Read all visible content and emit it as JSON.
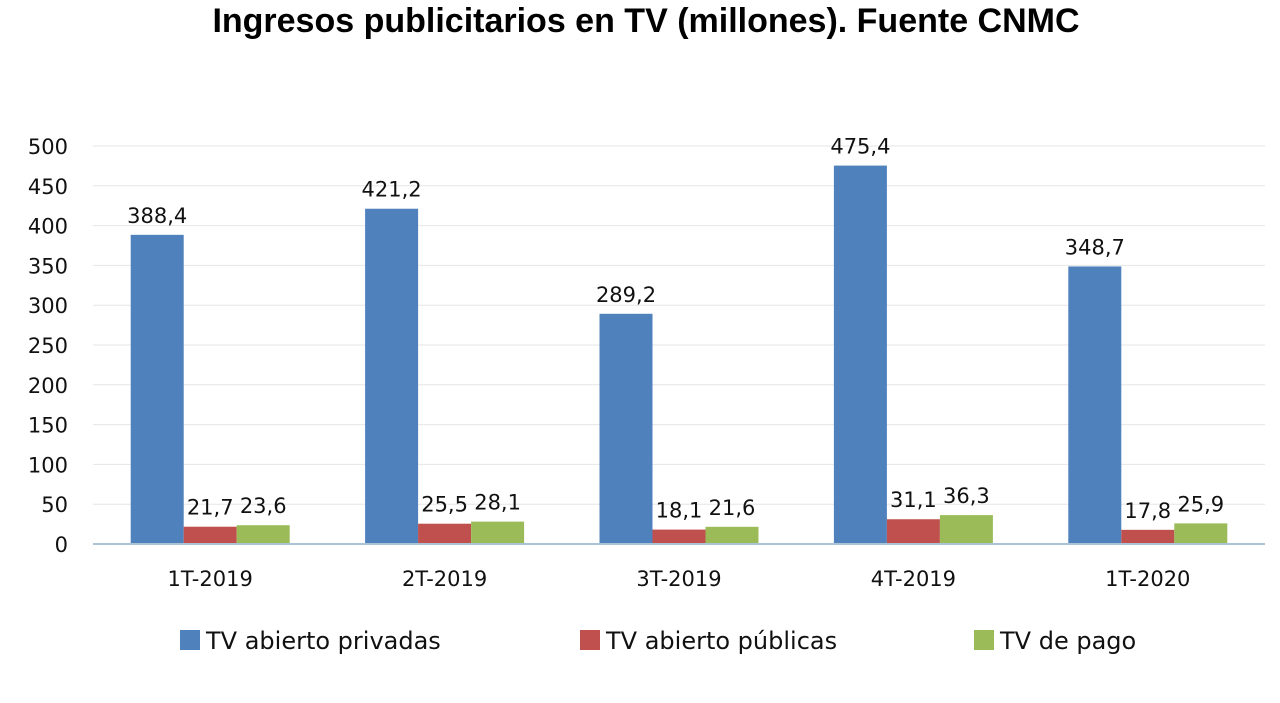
{
  "chart_data": {
    "type": "bar",
    "title": "Ingresos publicitarios en TV (millones). Fuente CNMC",
    "xlabel": "",
    "ylabel": "",
    "categories": [
      "1T-2019",
      "2T-2019",
      "3T-2019",
      "4T-2019",
      "1T-2020"
    ],
    "series": [
      {
        "name": "TV abierto privadas",
        "color": "#4f81bd",
        "values": [
          388.4,
          421.2,
          289.2,
          475.4,
          348.7
        ],
        "labels": [
          "388,4",
          "421,2",
          "289,2",
          "475,4",
          "348,7"
        ]
      },
      {
        "name": "TV abierto públicas",
        "color": "#c0504d",
        "values": [
          21.7,
          25.5,
          18.1,
          31.1,
          17.8
        ],
        "labels": [
          "21,7",
          "25,5",
          "18,1",
          "31,1",
          "17,8"
        ]
      },
      {
        "name": "TV de pago",
        "color": "#9bbb59",
        "values": [
          23.6,
          28.1,
          21.6,
          36.3,
          25.9
        ],
        "labels": [
          "23,6",
          "28,1",
          "21,6",
          "36,3",
          "25,9"
        ]
      }
    ],
    "ylim": [
      0,
      500
    ],
    "yticks": [
      0,
      50,
      100,
      150,
      200,
      250,
      300,
      350,
      400,
      450,
      500
    ],
    "grid": true,
    "legend_position": "bottom"
  }
}
